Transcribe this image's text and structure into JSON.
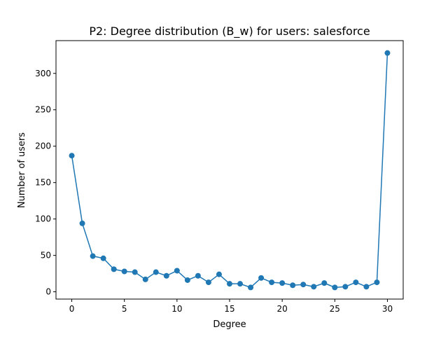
{
  "chart_data": {
    "type": "line",
    "title": "P2: Degree distribution (B_w) for users: salesforce",
    "xlabel": "Degree",
    "ylabel": "Number of users",
    "xlim": [
      -1.5,
      31.5
    ],
    "ylim": [
      -10,
      345
    ],
    "xticks": [
      0,
      5,
      10,
      15,
      20,
      25,
      30
    ],
    "yticks": [
      0,
      50,
      100,
      150,
      200,
      250,
      300
    ],
    "grid": false,
    "color": "#1f77b4",
    "marker": "circle",
    "series": [
      {
        "x": [
          0,
          1,
          2,
          3,
          4,
          5,
          6,
          7,
          8,
          9,
          10,
          11,
          12,
          13,
          14,
          15,
          16,
          17,
          18,
          19,
          20,
          21,
          22,
          23,
          24,
          25,
          26,
          27,
          28,
          29,
          30
        ],
        "values": [
          187,
          94,
          49,
          46,
          31,
          28,
          27,
          17,
          27,
          22,
          29,
          16,
          22,
          13,
          24,
          11,
          11,
          6,
          19,
          13,
          12,
          9,
          10,
          7,
          12,
          6,
          7,
          13,
          7,
          13,
          328
        ]
      }
    ]
  }
}
